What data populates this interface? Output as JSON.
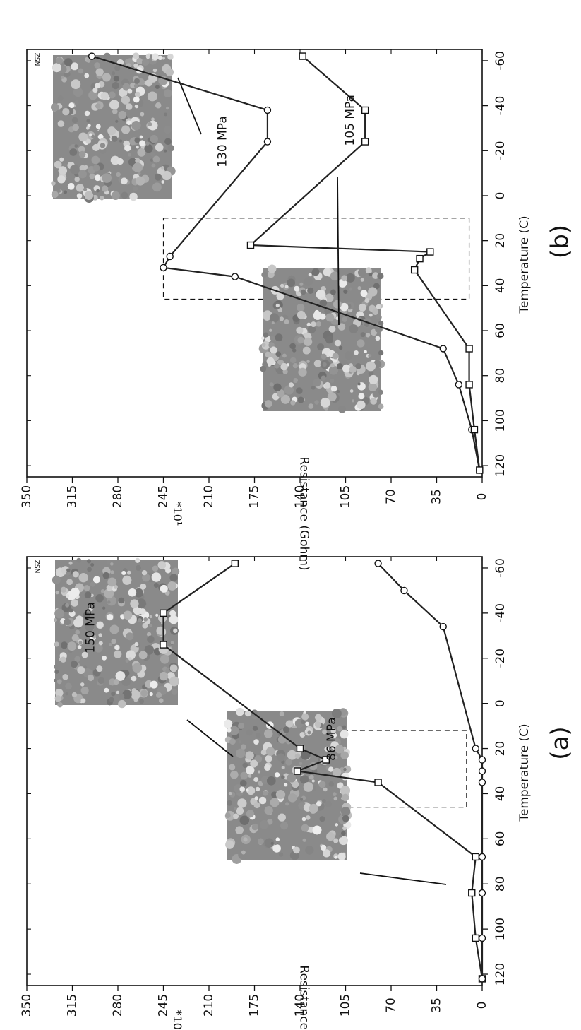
{
  "chart_data": [
    {
      "panel_label": "(a)",
      "type": "line",
      "xlabel": "Temperature (C)",
      "ylabel": "Resistance (Gohm)",
      "y_multiplier": "*10¹",
      "corner_mark": "ZSN",
      "xlim": [
        -65,
        125
      ],
      "ylim": [
        0,
        350
      ],
      "x_ticks": [
        -60,
        -40,
        -20,
        0,
        20,
        40,
        60,
        80,
        100,
        120
      ],
      "y_ticks": [
        0,
        35,
        70,
        105,
        140,
        175,
        210,
        245,
        280,
        315,
        350
      ],
      "grid": false,
      "highlight_box": {
        "x": [
          12,
          46
        ],
        "y": [
          12,
          133
        ]
      },
      "series": [
        {
          "name": "86 MPa",
          "marker": "square",
          "x": [
            -62,
            -40,
            -26,
            20,
            25,
            30,
            35,
            68,
            84,
            104,
            122
          ],
          "y": [
            190,
            245,
            245,
            140,
            120,
            142,
            80,
            5,
            8,
            5,
            0
          ]
        },
        {
          "name": "150 MPa",
          "marker": "circle",
          "x": [
            -62,
            -50,
            -34,
            20,
            25,
            30,
            35,
            68,
            84,
            104,
            122
          ],
          "y": [
            80,
            60,
            30,
            5,
            0,
            0,
            0,
            0,
            0,
            0,
            0
          ]
        }
      ]
    },
    {
      "panel_label": "(b)",
      "type": "line",
      "xlabel": "Temperature (C)",
      "ylabel": "Resistance (Gohm)",
      "y_multiplier": "*10¹",
      "corner_mark": "ZSN",
      "xlim": [
        -65,
        125
      ],
      "ylim": [
        0,
        350
      ],
      "x_ticks": [
        -60,
        -40,
        -20,
        0,
        20,
        40,
        60,
        80,
        100,
        120
      ],
      "y_ticks": [
        0,
        35,
        70,
        105,
        140,
        175,
        210,
        245,
        280,
        315,
        350
      ],
      "grid": false,
      "highlight_box": {
        "x": [
          10,
          46
        ],
        "y": [
          10,
          245
        ]
      },
      "series": [
        {
          "name": "130 MPa",
          "marker": "circle",
          "x": [
            -62,
            -38,
            -24,
            27,
            32,
            36,
            68,
            84,
            104,
            122
          ],
          "y": [
            300,
            165,
            165,
            240,
            245,
            190,
            30,
            18,
            8,
            2
          ]
        },
        {
          "name": "105 MPa",
          "marker": "square",
          "x": [
            -62,
            -38,
            -24,
            22,
            25,
            28,
            33,
            68,
            84,
            104,
            122
          ],
          "y": [
            138,
            90,
            90,
            178,
            40,
            48,
            52,
            10,
            10,
            6,
            2
          ]
        }
      ]
    }
  ]
}
